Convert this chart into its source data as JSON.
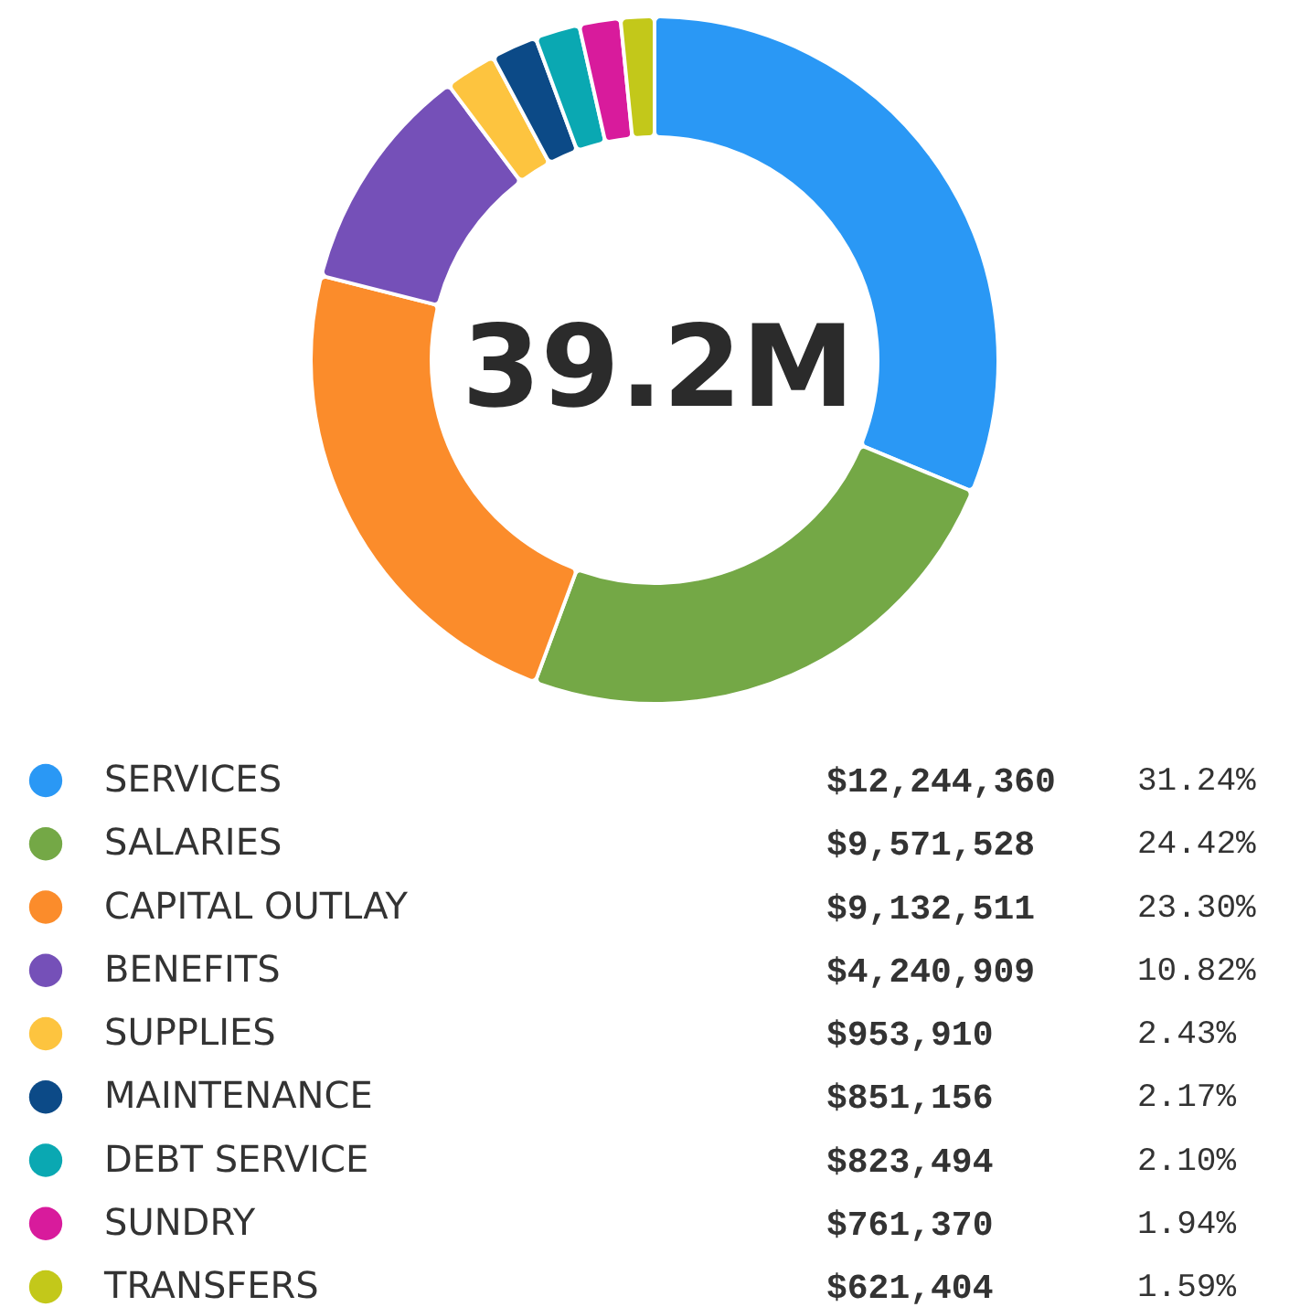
{
  "chart_data": {
    "type": "donut",
    "categories": [
      "SERVICES",
      "SALARIES",
      "CAPITAL OUTLAY",
      "BENEFITS",
      "SUPPLIES",
      "MAINTENANCE",
      "DEBT SERVICE",
      "SUNDRY",
      "TRANSFERS"
    ],
    "values": [
      12244360,
      9571528,
      9132511,
      4240909,
      953910,
      851156,
      823494,
      761370,
      621404
    ],
    "colors": [
      "#2a98f5",
      "#74a846",
      "#fb8c2b",
      "#7550b8",
      "#fdc43f",
      "#0c4a87",
      "#0aa8b2",
      "#d81b9c",
      "#c3c81a"
    ],
    "value_labels": [
      "$12,244,360",
      "$9,571,528",
      "$9,132,511",
      "$4,240,909",
      "$953,910",
      "$851,156",
      "$823,494",
      "$761,370",
      "$621,404"
    ],
    "annotations": [
      "39.2M",
      "31.24%",
      "24.42%",
      "23.30%",
      "10.82%",
      "2.43%",
      "2.17%",
      "2.10%",
      "1.94%",
      "1.59%"
    ],
    "legend": "bottom"
  }
}
